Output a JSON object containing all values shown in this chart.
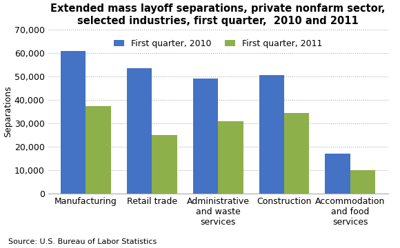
{
  "title": "Extended mass layoff separations, private nonfarm sector,\nselected industries, first quarter,  2010 and 2011",
  "categories": [
    "Manufacturing",
    "Retail trade",
    "Administrative\nand waste\nservices",
    "Construction",
    "Accommodation\nand food\nservices"
  ],
  "values_2010": [
    61000,
    53500,
    49000,
    50500,
    17000
  ],
  "values_2011": [
    37500,
    25000,
    31000,
    34500,
    10000
  ],
  "color_2010": "#4472C4",
  "color_2011": "#8DB04A",
  "legend_2010": "First quarter, 2010",
  "legend_2011": "First quarter, 2011",
  "ylabel": "Separations",
  "ylim": [
    0,
    70000
  ],
  "yticks": [
    0,
    10000,
    20000,
    30000,
    40000,
    50000,
    60000,
    70000
  ],
  "source": "Source: U.S. Bureau of Labor Statistics",
  "background_color": "#ffffff",
  "title_fontsize": 10.5,
  "axis_fontsize": 9,
  "tick_fontsize": 9,
  "bar_width": 0.38
}
